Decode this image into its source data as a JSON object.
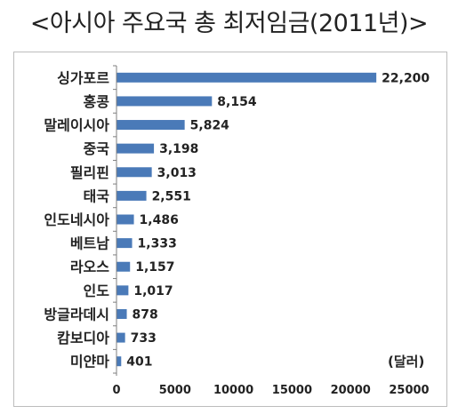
{
  "title": "<아시아 주요국 총 최저임금(2011년)>",
  "unit_label": "(달러)",
  "colors": {
    "bar": "#4a7ab8",
    "axis": "#7f7f7f",
    "text": "#222222"
  },
  "chart_data": {
    "type": "bar",
    "orientation": "horizontal",
    "title": "<아시아 주요국 총 최저임금(2011년)>",
    "unit": "(달러)",
    "categories": [
      "싱가포르",
      "홍콩",
      "말레이시아",
      "중국",
      "필리핀",
      "태국",
      "인도네시아",
      "베트남",
      "라오스",
      "인도",
      "방글라데시",
      "캄보디아",
      "미얀마"
    ],
    "values": [
      22200,
      8154,
      5824,
      3198,
      3013,
      2551,
      1486,
      1333,
      1157,
      1017,
      878,
      733,
      401
    ],
    "value_labels": [
      "22,200",
      "8,154",
      "5,824",
      "3,198",
      "3,013",
      "2,551",
      "1,486",
      "1,333",
      "1,157",
      "1,017",
      "878",
      "733",
      "401"
    ],
    "xlim": [
      0,
      25000
    ],
    "xticks": [
      0,
      5000,
      10000,
      15000,
      20000,
      25000
    ],
    "xtick_labels": [
      "0",
      "5000",
      "10000",
      "15000",
      "20000",
      "25000"
    ],
    "grid": false,
    "legend": "none"
  }
}
